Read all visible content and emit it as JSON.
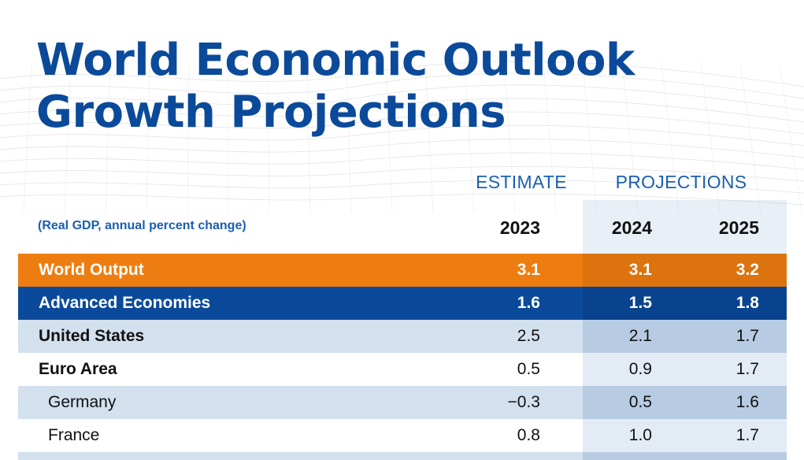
{
  "title": {
    "line1": "World Economic Outlook",
    "line2": "Growth Projections"
  },
  "column_groups": {
    "estimate": "ESTIMATE",
    "projections": "PROJECTIONS"
  },
  "subtitle": "(Real GDP, annual percent change)",
  "years": [
    "2023",
    "2024",
    "2025"
  ],
  "rows": [
    {
      "label": "World Output",
      "values": [
        "3.1",
        "3.1",
        "3.2"
      ]
    },
    {
      "label": "Advanced Economies",
      "values": [
        "1.6",
        "1.5",
        "1.8"
      ]
    },
    {
      "label": "United States",
      "values": [
        "2.5",
        "2.1",
        "1.7"
      ]
    },
    {
      "label": "Euro Area",
      "values": [
        "0.5",
        "0.9",
        "1.7"
      ]
    },
    {
      "label": "Germany",
      "values": [
        "−0.3",
        "0.5",
        "1.6"
      ]
    },
    {
      "label": "France",
      "values": [
        "0.8",
        "1.0",
        "1.7"
      ]
    }
  ],
  "colors": {
    "title_blue": "#0b4a9a",
    "header_blue": "#1a5fb0",
    "world_orange": "#ee7d11",
    "advanced_navy": "#0b4a9a",
    "row_shade": "#d3e0ee"
  }
}
